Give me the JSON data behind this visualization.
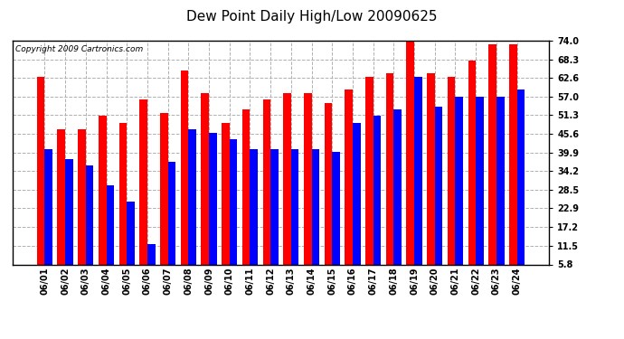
{
  "title": "Dew Point Daily High/Low 20090625",
  "copyright": "Copyright 2009 Cartronics.com",
  "dates": [
    "06/01",
    "06/02",
    "06/03",
    "06/04",
    "06/05",
    "06/06",
    "06/07",
    "06/08",
    "06/09",
    "06/10",
    "06/11",
    "06/12",
    "06/13",
    "06/14",
    "06/15",
    "06/16",
    "06/17",
    "06/18",
    "06/19",
    "06/20",
    "06/21",
    "06/22",
    "06/23",
    "06/24"
  ],
  "highs": [
    63.0,
    47.0,
    47.0,
    51.0,
    49.0,
    56.0,
    52.0,
    65.0,
    58.0,
    49.0,
    53.0,
    56.0,
    58.0,
    58.0,
    55.0,
    59.0,
    63.0,
    64.0,
    74.0,
    64.0,
    63.0,
    68.0,
    73.0,
    73.0
  ],
  "lows": [
    41.0,
    38.0,
    36.0,
    30.0,
    25.0,
    12.0,
    37.0,
    47.0,
    46.0,
    44.0,
    41.0,
    41.0,
    41.0,
    41.0,
    40.0,
    49.0,
    51.0,
    53.0,
    63.0,
    54.0,
    57.0,
    57.0,
    57.0,
    59.0
  ],
  "high_color": "#ff0000",
  "low_color": "#0000ff",
  "bg_color": "#ffffff",
  "plot_bg_color": "#ffffff",
  "grid_color": "#b0b0b0",
  "yticks": [
    5.8,
    11.5,
    17.2,
    22.9,
    28.5,
    34.2,
    39.9,
    45.6,
    51.3,
    57.0,
    62.6,
    68.3,
    74.0
  ],
  "ymin": 5.8,
  "ymax": 74.0,
  "title_fontsize": 11,
  "tick_fontsize": 7,
  "copyright_fontsize": 6.5,
  "bar_width": 0.38
}
